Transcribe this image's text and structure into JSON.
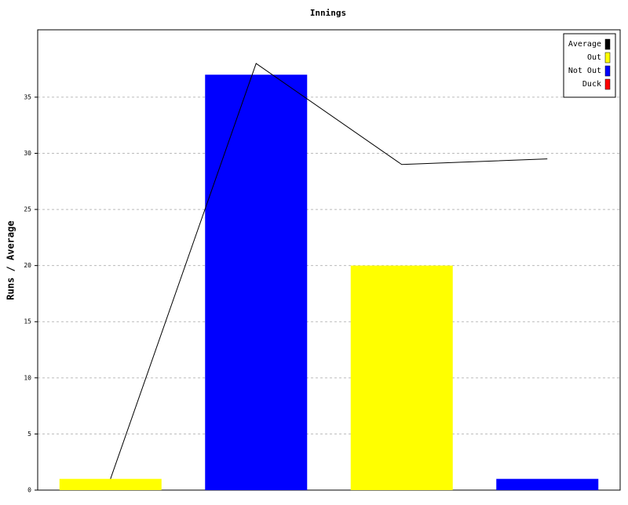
{
  "chart_data": {
    "type": "bar",
    "title": "Innings",
    "y_label": "Runs / Average",
    "categories": [
      null,
      null,
      null,
      null
    ],
    "series": [
      {
        "name": "Average",
        "color": "#000000",
        "type": "line",
        "values": [
          1,
          38,
          29,
          29.5
        ]
      },
      {
        "name": "Out",
        "color": "#ffff00",
        "values": [
          1,
          null,
          20,
          null
        ]
      },
      {
        "name": "Not Out",
        "color": "#0000ff",
        "values": [
          null,
          37,
          null,
          1
        ]
      },
      {
        "name": "Duck",
        "color": "#ff0000",
        "values": [
          null,
          null,
          null,
          null
        ]
      }
    ],
    "ylim": [
      0,
      41
    ],
    "yticks": [
      0,
      5,
      10,
      15,
      20,
      25,
      30,
      35
    ],
    "grid": true,
    "legend": "top-right"
  }
}
